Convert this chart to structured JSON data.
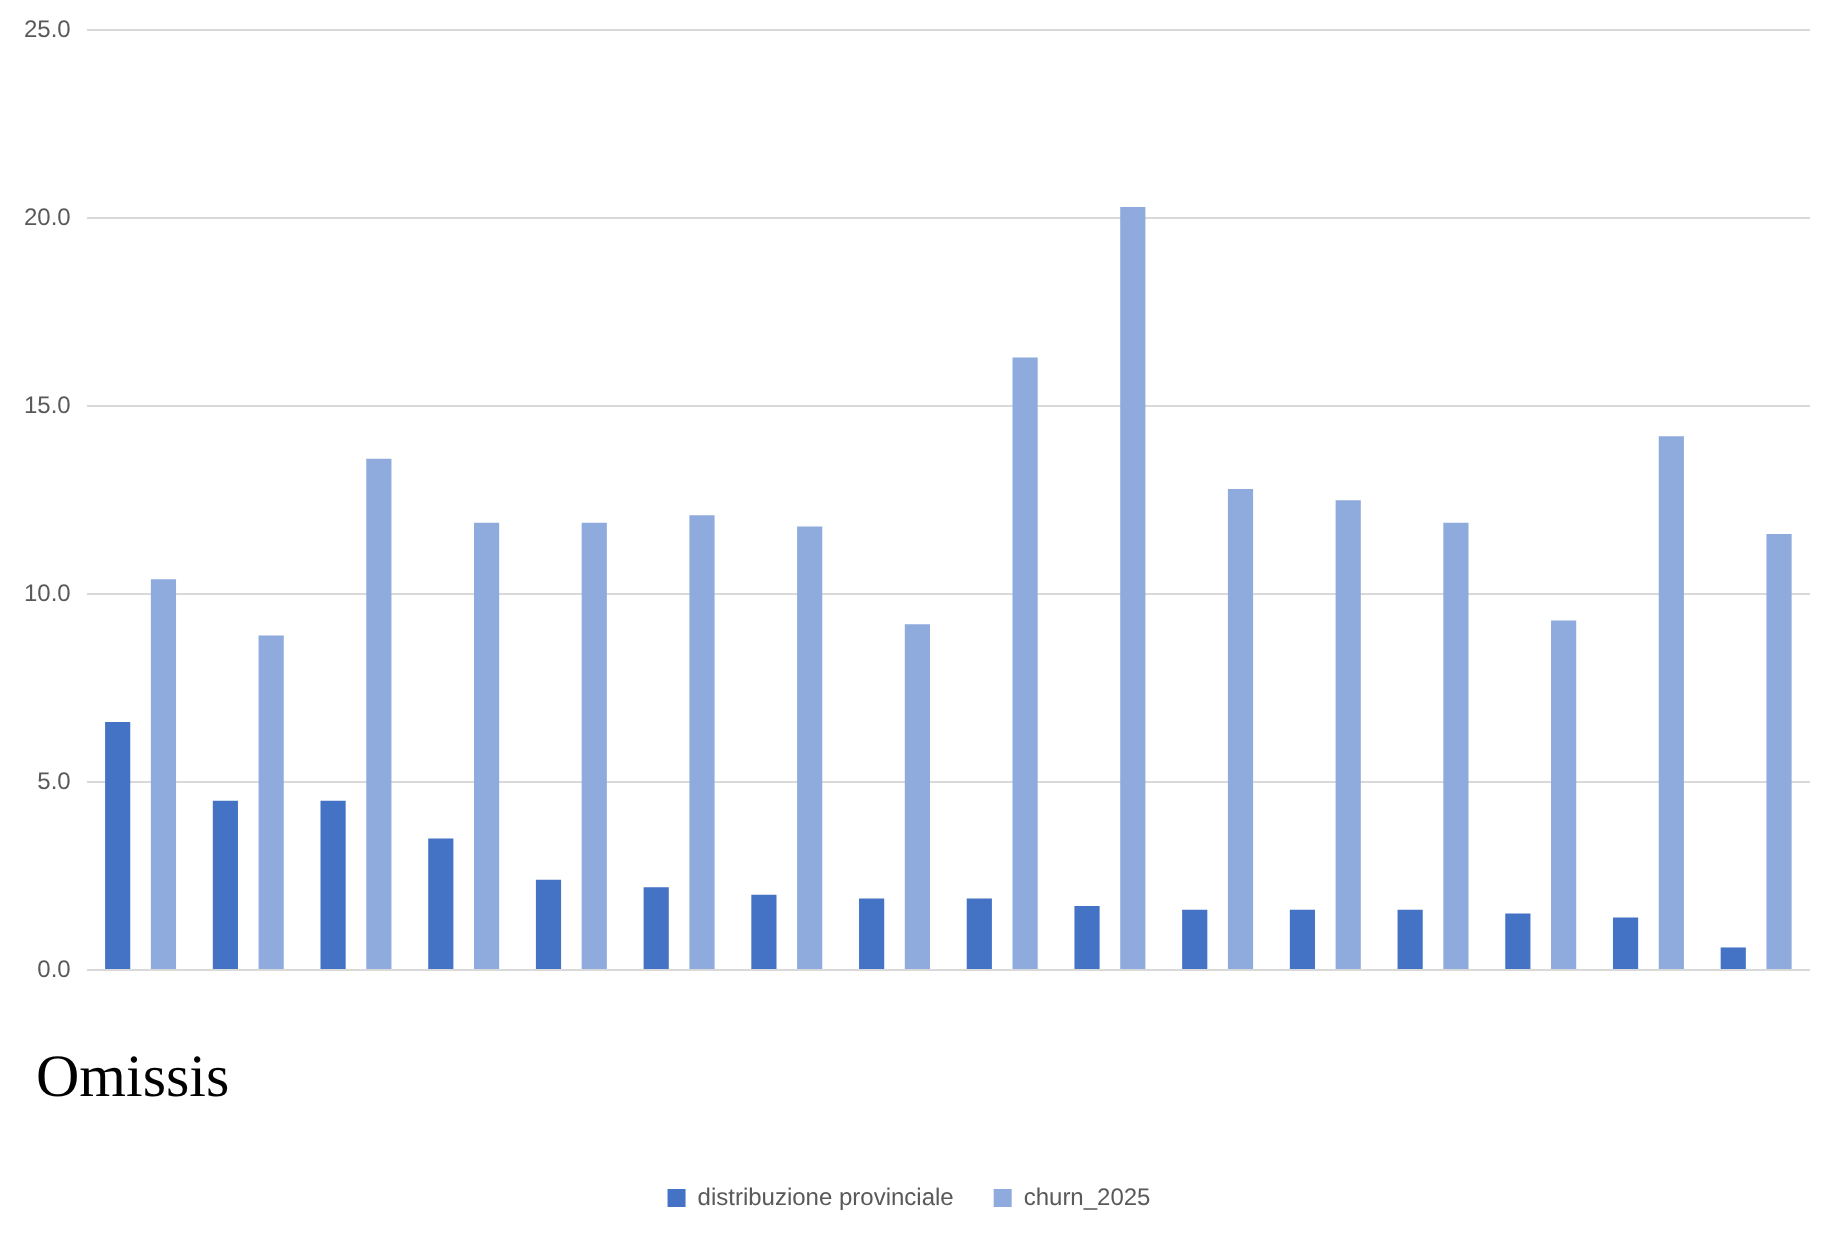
{
  "chart_data": {
    "type": "bar",
    "categories": [
      null,
      null,
      null,
      null,
      null,
      null,
      null,
      null,
      null,
      null,
      null,
      null,
      null,
      null,
      null,
      null
    ],
    "series": [
      {
        "name": "distribuzione provinciale",
        "color": "#4472c4",
        "values": [
          6.6,
          4.5,
          4.5,
          3.5,
          2.4,
          2.2,
          2.0,
          1.9,
          1.9,
          1.7,
          1.6,
          1.6,
          1.6,
          1.5,
          1.4,
          0.6
        ]
      },
      {
        "name": "churn_2025",
        "color": "#8faadc",
        "values": [
          10.4,
          8.9,
          13.6,
          11.9,
          11.9,
          12.1,
          11.8,
          9.2,
          16.3,
          20.3,
          12.8,
          12.5,
          11.9,
          9.3,
          14.2,
          11.6
        ]
      }
    ],
    "ylim": [
      0,
      25
    ],
    "yticks": [
      {
        "value": 0,
        "label": "0.0"
      },
      {
        "value": 5,
        "label": "5.0"
      },
      {
        "value": 10,
        "label": "10.0"
      },
      {
        "value": 15,
        "label": "15.0"
      },
      {
        "value": 20,
        "label": "20.0"
      },
      {
        "value": 25,
        "label": "25.0"
      }
    ],
    "grid": "y",
    "legend": "bottom",
    "tick_labels": "y",
    "annotations": [
      "Omissis"
    ]
  }
}
